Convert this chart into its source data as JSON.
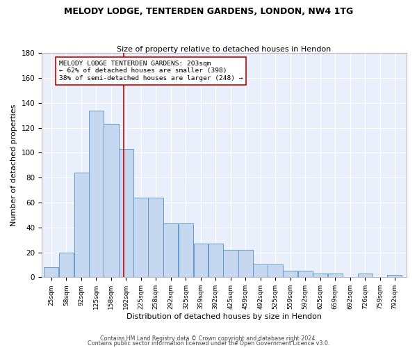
{
  "title1": "MELODY LODGE, TENTERDEN GARDENS, LONDON, NW4 1TG",
  "title2": "Size of property relative to detached houses in Hendon",
  "xlabel": "Distribution of detached houses by size in Hendon",
  "ylabel": "Number of detached properties",
  "bar_values": [
    8,
    20,
    84,
    134,
    123,
    103,
    64,
    64,
    43,
    43,
    27,
    27,
    22,
    22,
    10,
    10,
    5,
    5,
    3,
    3,
    0,
    3,
    0,
    2
  ],
  "bin_edges": [
    25,
    58,
    92,
    125,
    158,
    192,
    225,
    258,
    292,
    325,
    359,
    392,
    425,
    459,
    492,
    525,
    559,
    592,
    625,
    659,
    692,
    726,
    759,
    792,
    825
  ],
  "bar_color": "#c5d8f0",
  "bar_edge_color": "#6699cc",
  "vline_x": 203,
  "vline_color": "#cc0000",
  "ylim": [
    0,
    180
  ],
  "yticks": [
    0,
    20,
    40,
    60,
    80,
    100,
    120,
    140,
    160,
    180
  ],
  "annotation_text": "MELODY LODGE TENTERDEN GARDENS: 203sqm\n← 62% of detached houses are smaller (398)\n38% of semi-detached houses are larger (248) →",
  "bg_color": "#eaf0fb",
  "footnote1": "Contains HM Land Registry data © Crown copyright and database right 2024.",
  "footnote2": "Contains public sector information licensed under the Open Government Licence v3.0."
}
